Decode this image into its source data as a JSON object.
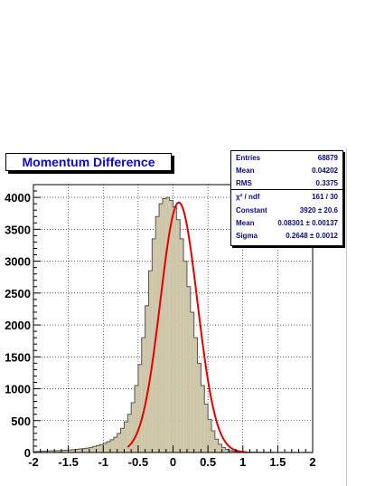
{
  "colors": {
    "histogram_fill": "#cdc6a8",
    "histogram_line": "#555555",
    "fit_line": "#e00000",
    "title_text": "#0a0ac8",
    "stats_text": "#0a0a80"
  },
  "title": "Momentum Difference",
  "stats": {
    "rows": [
      {
        "label": "Entries",
        "value": "68879"
      },
      {
        "label": "Mean",
        "value": "0.04202"
      },
      {
        "label": "RMS",
        "value": "0.3375"
      },
      {
        "label": "χ² / ndf",
        "value": "161 / 30"
      },
      {
        "label": "Constant",
        "value": "3920 ± 20.6"
      },
      {
        "label": "Mean",
        "value": "0.08301 ± 0.00137"
      },
      {
        "label": "Sigma",
        "value": "0.2648 ± 0.0012"
      }
    ]
  },
  "chart_data": {
    "type": "bar",
    "title": "Momentum Difference",
    "xlabel": "",
    "ylabel": "",
    "xlim": [
      -2,
      2
    ],
    "ylim": [
      0,
      4200
    ],
    "grid": true,
    "x_ticks": [
      "-2",
      "-1.5",
      "-1",
      "-0.5",
      "0",
      "0.5",
      "1",
      "1.5",
      "2"
    ],
    "y_ticks": [
      "0",
      "500",
      "1000",
      "1500",
      "2000",
      "2500",
      "3000",
      "3500",
      "4000"
    ],
    "bin_width": 0.05,
    "bin_centers": [
      -1.975,
      -1.925,
      -1.875,
      -1.825,
      -1.775,
      -1.725,
      -1.675,
      -1.625,
      -1.575,
      -1.525,
      -1.475,
      -1.425,
      -1.375,
      -1.325,
      -1.275,
      -1.225,
      -1.175,
      -1.125,
      -1.075,
      -1.025,
      -0.975,
      -0.925,
      -0.875,
      -0.825,
      -0.775,
      -0.725,
      -0.675,
      -0.625,
      -0.575,
      -0.525,
      -0.475,
      -0.425,
      -0.375,
      -0.325,
      -0.275,
      -0.225,
      -0.175,
      -0.125,
      -0.075,
      -0.025,
      0.025,
      0.075,
      0.125,
      0.175,
      0.225,
      0.275,
      0.325,
      0.375,
      0.425,
      0.475,
      0.525,
      0.575,
      0.625,
      0.675,
      0.725,
      0.775,
      0.825,
      0.875,
      0.925,
      0.975,
      1.025,
      1.075,
      1.125,
      1.175,
      1.225,
      1.275,
      1.325,
      1.375,
      1.425,
      1.475,
      1.525,
      1.575,
      1.625,
      1.675,
      1.725,
      1.775,
      1.825,
      1.875,
      1.925,
      1.975
    ],
    "counts": [
      15,
      18,
      20,
      22,
      24,
      26,
      28,
      30,
      33,
      36,
      40,
      45,
      50,
      56,
      62,
      70,
      80,
      95,
      110,
      125,
      145,
      170,
      200,
      240,
      300,
      380,
      480,
      600,
      780,
      1050,
      1380,
      1800,
      2300,
      2850,
      3350,
      3700,
      3900,
      3980,
      4000,
      3950,
      3850,
      3650,
      3350,
      3000,
      2600,
      2200,
      1800,
      1400,
      1050,
      760,
      520,
      340,
      210,
      130,
      80,
      50,
      30,
      20,
      15,
      11,
      9,
      7,
      6,
      5,
      4,
      4,
      3,
      3,
      3,
      2,
      2,
      2,
      2,
      2,
      1,
      1,
      1,
      1,
      1,
      1
    ],
    "fit": {
      "type": "gaussian",
      "constant": 3920,
      "mean": 0.08301,
      "sigma": 0.2648,
      "range": [
        -0.65,
        1.05
      ]
    }
  }
}
